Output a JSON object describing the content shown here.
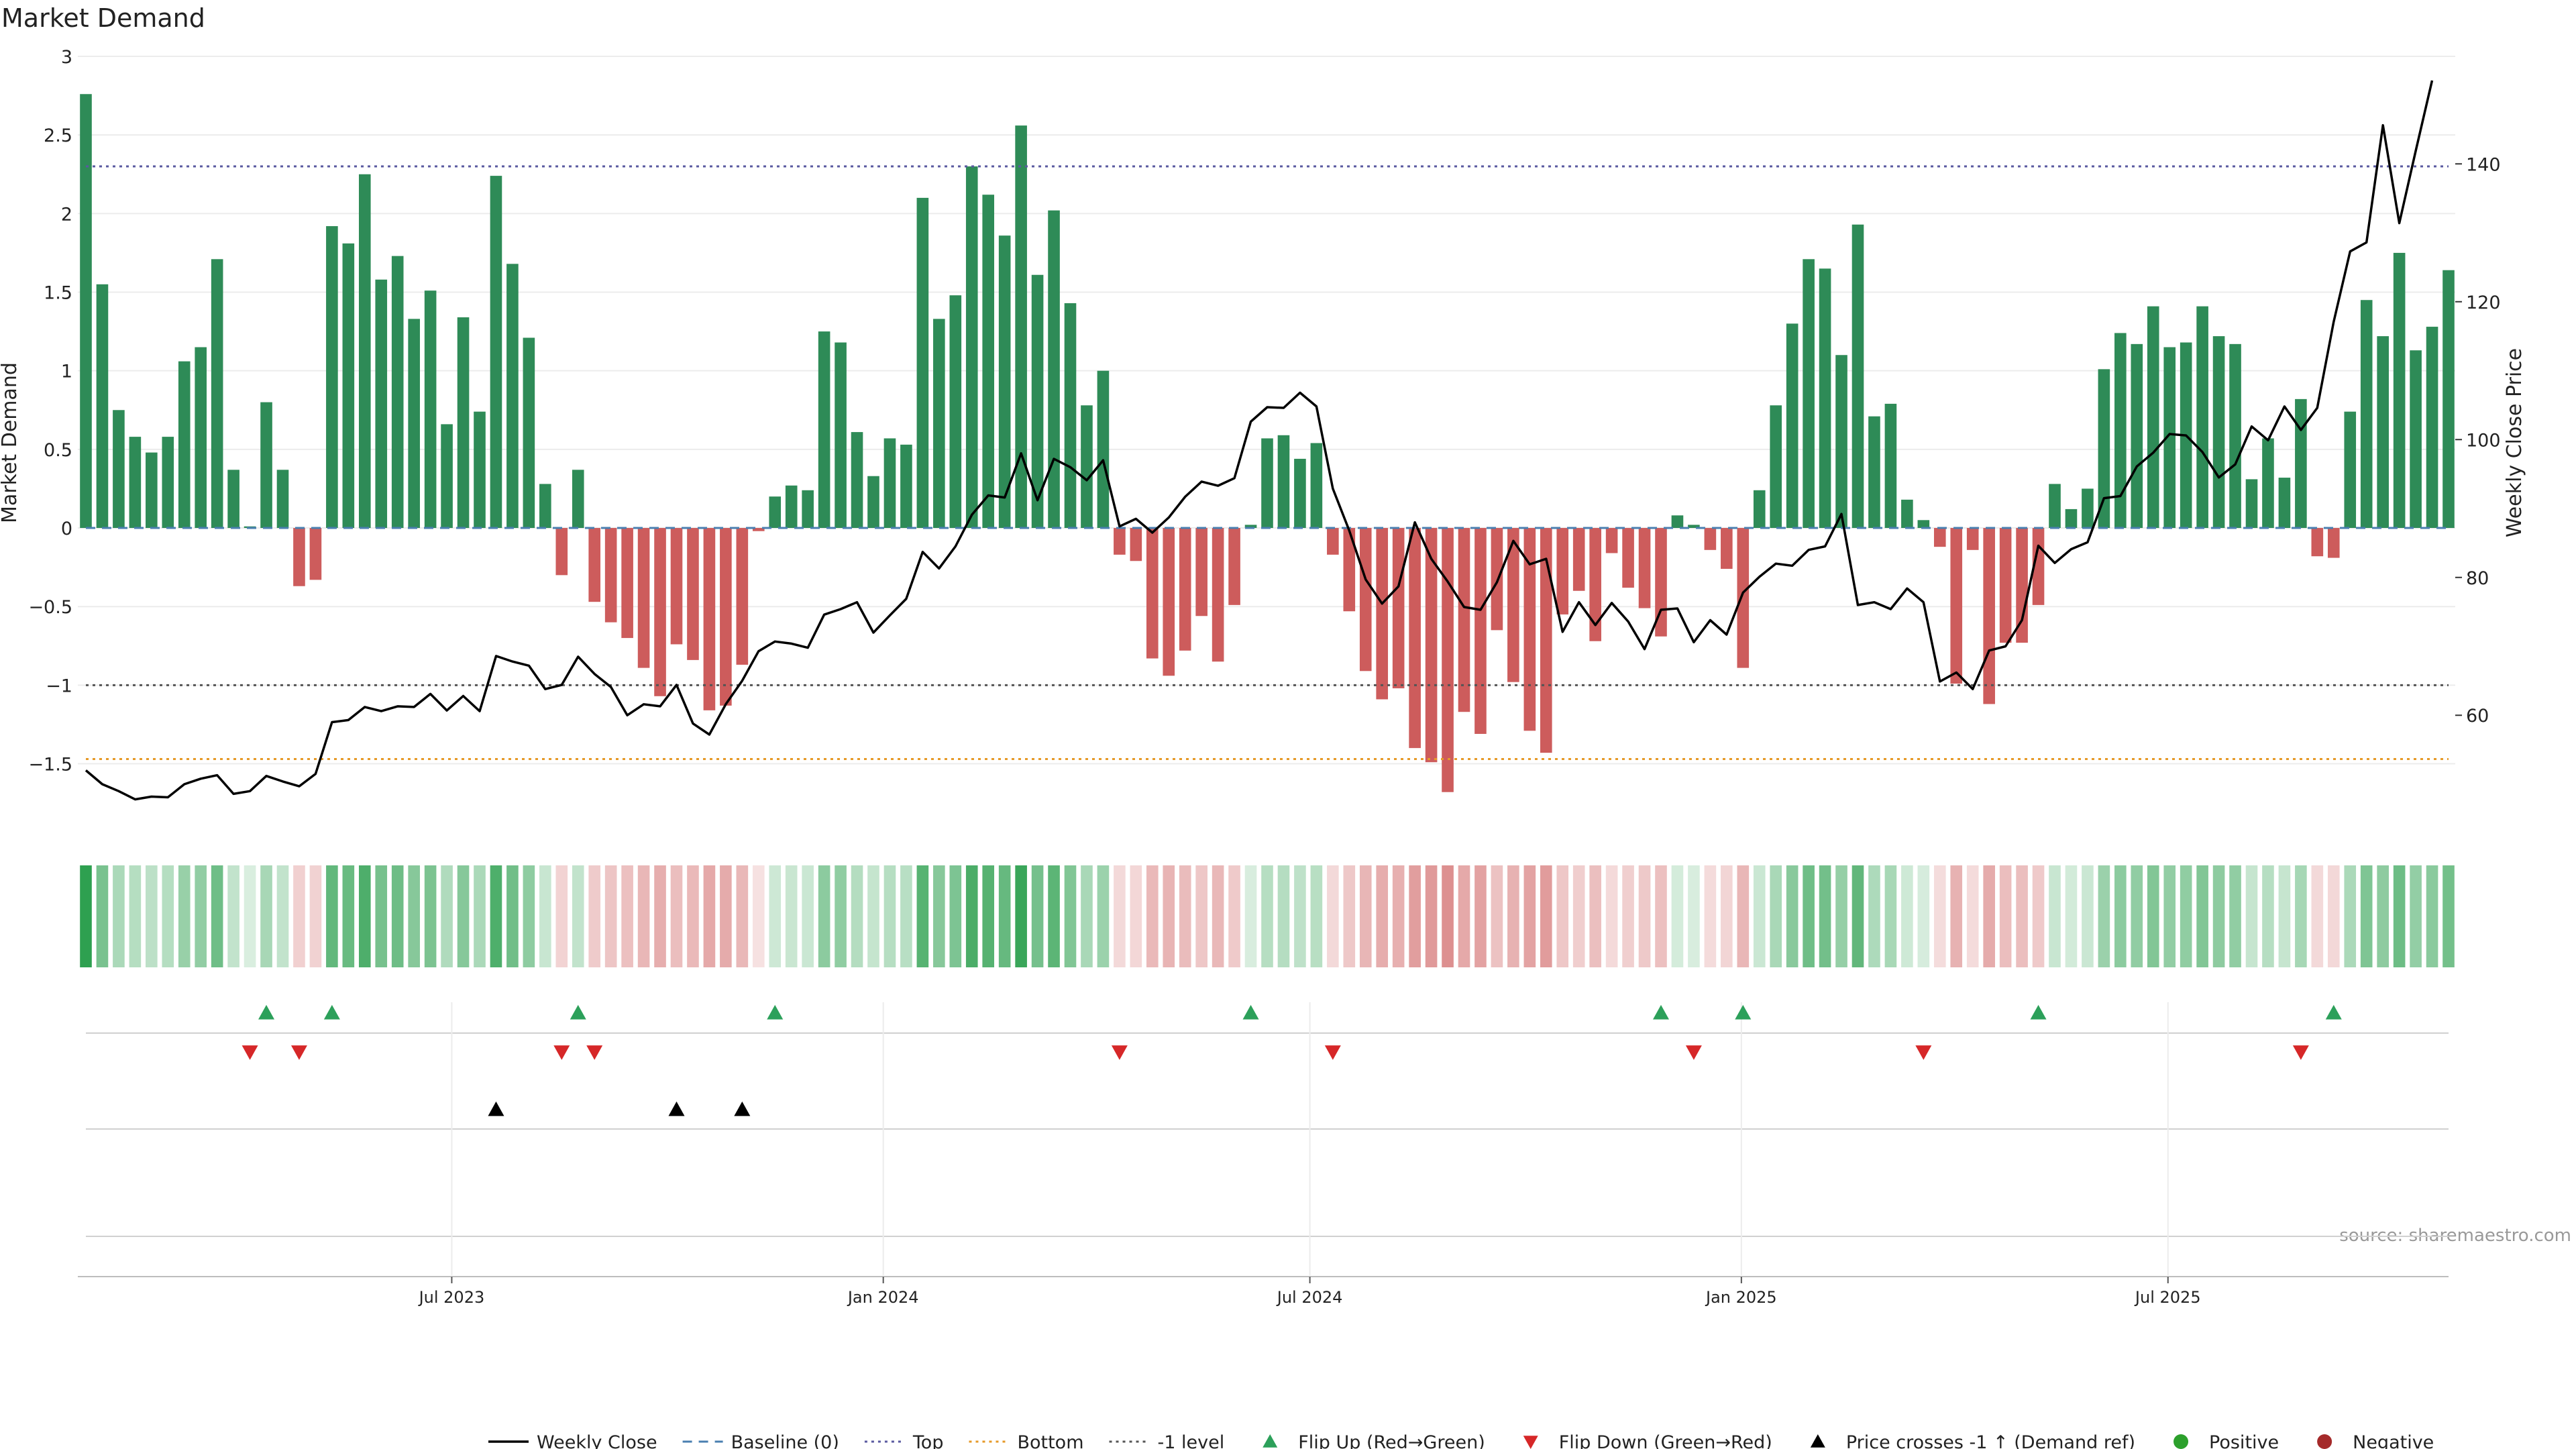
{
  "title": "Market Demand",
  "source": "source: sharemaestro.com",
  "colors": {
    "positive": "#2e8b57",
    "negative": "#cd5c5c",
    "price": "#000000",
    "top": "#5a5aa0",
    "bottom": "#e69a28",
    "minus1": "#555555",
    "baseline": "#4a7fb0",
    "flip_up": "#2ca05a",
    "flip_down": "#d62728",
    "cross": "#000000",
    "legend_positive": "#2ca02c",
    "legend_negative": "#a52a2a"
  },
  "chart_data": {
    "type": "bar",
    "title": "Market Demand",
    "ylabel": "Market Demand",
    "y2label": "Weekly Close Price",
    "ylim": [
      -1.95,
      3
    ],
    "y2lim": [
      42.7,
      155.6
    ],
    "yticks": [
      -1.5,
      -1,
      -0.5,
      0,
      0.5,
      1,
      1.5,
      2,
      2.5,
      3
    ],
    "yticklabels": [
      "−1.5",
      "−1",
      "−0.5",
      "0",
      "0.5",
      "1",
      "1.5",
      "2",
      "2.5",
      "3"
    ],
    "y2ticks": [
      60,
      80,
      100,
      120,
      140
    ],
    "y2ticklabels": [
      "60",
      "80",
      "100",
      "120",
      "140"
    ],
    "levels": {
      "top": 2.3,
      "bottom": -1.47,
      "minus1": -1.0,
      "baseline": 0
    },
    "x_date_ticks": [
      {
        "index": 22.3,
        "label": "Jul 2023"
      },
      {
        "index": 48.6,
        "label": "Jan 2024"
      },
      {
        "index": 74.6,
        "label": "Jul 2024"
      },
      {
        "index": 100.9,
        "label": "Jan 2025"
      },
      {
        "index": 126.9,
        "label": "Jul 2025"
      }
    ],
    "demand": [
      2.76,
      1.55,
      0.75,
      0.58,
      0.48,
      0.58,
      1.06,
      1.15,
      1.71,
      0.37,
      0.01,
      0.8,
      0.37,
      -0.37,
      -0.33,
      1.92,
      1.81,
      2.25,
      1.58,
      1.73,
      1.33,
      1.51,
      0.66,
      1.34,
      0.74,
      2.24,
      1.68,
      1.21,
      0.28,
      -0.3,
      0.37,
      -0.47,
      -0.6,
      -0.7,
      -0.89,
      -1.07,
      -0.74,
      -0.84,
      -1.16,
      -1.13,
      -0.87,
      -0.02,
      0.2,
      0.27,
      0.24,
      1.25,
      1.18,
      0.61,
      0.33,
      0.57,
      0.53,
      2.1,
      1.33,
      1.48,
      2.3,
      2.12,
      1.86,
      2.56,
      1.61,
      2.02,
      1.43,
      0.78,
      1.0,
      -0.17,
      -0.21,
      -0.83,
      -0.94,
      -0.78,
      -0.56,
      -0.85,
      -0.49,
      0.02,
      0.57,
      0.59,
      0.44,
      0.54,
      -0.17,
      -0.53,
      -0.91,
      -1.09,
      -1.02,
      -1.4,
      -1.49,
      -1.68,
      -1.17,
      -1.31,
      -0.65,
      -0.98,
      -1.29,
      -1.43,
      -0.55,
      -0.4,
      -0.72,
      -0.16,
      -0.38,
      -0.51,
      -0.69,
      0.08,
      0.02,
      -0.14,
      -0.26,
      -0.89,
      0.24,
      0.78,
      1.3,
      1.71,
      1.65,
      1.1,
      1.93,
      0.71,
      0.79,
      0.18,
      0.05,
      -0.12,
      -0.99,
      -0.14,
      -1.12,
      -0.73,
      -0.73,
      -0.49,
      0.28,
      0.12,
      0.25,
      1.01,
      1.24,
      1.17,
      1.41,
      1.15,
      1.18,
      1.41,
      1.22,
      1.17,
      0.31,
      0.57,
      0.32,
      0.82,
      -0.18,
      -0.19,
      0.74,
      1.45,
      1.22,
      1.75,
      1.13,
      1.28,
      1.64
    ],
    "price": [
      52,
      50,
      49,
      47.8,
      48.2,
      48.1,
      50,
      50.8,
      51.3,
      48.6,
      49,
      51.2,
      50.4,
      49.7,
      51.5,
      59,
      59.3,
      61.2,
      60.6,
      61.3,
      61.2,
      63.1,
      60.7,
      62.8,
      60.6,
      68.6,
      67.8,
      67.2,
      63.8,
      64.4,
      68.5,
      66,
      64.1,
      60,
      61.6,
      61.3,
      64.4,
      58.8,
      57.2,
      61.6,
      65,
      69.3,
      70.7,
      70.4,
      69.8,
      74.6,
      75.4,
      76.4,
      72,
      74.5,
      76.9,
      83.7,
      81.3,
      84.5,
      89.1,
      91.9,
      91.6,
      98,
      91.2,
      97.2,
      96,
      94.1,
      97,
      87.4,
      88.5,
      86.5,
      88.7,
      91.7,
      93.9,
      93.3,
      94.4,
      102.6,
      104.7,
      104.6,
      106.8,
      104.8,
      92.9,
      86.8,
      79.7,
      76.2,
      78.7,
      88,
      82.7,
      79.4,
      75.7,
      75.3,
      79.3,
      85.3,
      81.9,
      82.7,
      72.1,
      76.4,
      73.1,
      76.3,
      73.6,
      69.6,
      75.3,
      75.5,
      70.6,
      73.8,
      71.7,
      77.8,
      80.1,
      82,
      81.7,
      84,
      84.5,
      89.2,
      76,
      76.4,
      75.4,
      78.4,
      76.4,
      64.9,
      66.2,
      63.8,
      69.4,
      70,
      73.8,
      84.6,
      82.1,
      84.1,
      85.1,
      91.5,
      91.8,
      96.1,
      98.1,
      100.8,
      100.6,
      98.2,
      94.5,
      96.4,
      101.9,
      99.9,
      104.8,
      101.4,
      104.6,
      117.1,
      127.3,
      128.6,
      145.6,
      131.4,
      141.9,
      152.1
    ],
    "flip_up": [
      11,
      15,
      30,
      42,
      71,
      96,
      101,
      119,
      137
    ],
    "flip_down": [
      10,
      13,
      29,
      31,
      63,
      76,
      98,
      112,
      135
    ],
    "price_crosses_minus1": [
      25,
      36,
      40
    ],
    "legend": [
      {
        "key": "weekly_close",
        "label": "Weekly Close"
      },
      {
        "key": "baseline",
        "label": "Baseline (0)"
      },
      {
        "key": "top",
        "label": "Top"
      },
      {
        "key": "bottom",
        "label": "Bottom"
      },
      {
        "key": "minus1",
        "label": "-1 level"
      },
      {
        "key": "flip_up",
        "label": "Flip Up (Red→Green)"
      },
      {
        "key": "flip_down",
        "label": "Flip Down (Green→Red)"
      },
      {
        "key": "cross",
        "label": "Price crosses -1 ↑ (Demand ref)"
      },
      {
        "key": "positive",
        "label": "Positive"
      },
      {
        "key": "negative",
        "label": "Negative"
      }
    ]
  }
}
